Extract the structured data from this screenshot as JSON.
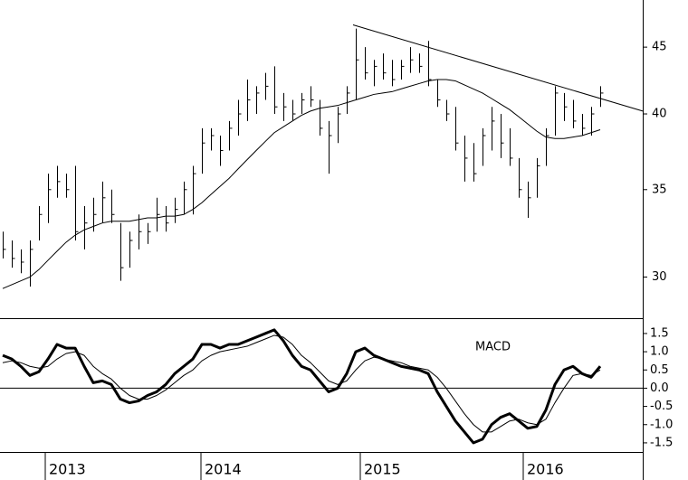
{
  "chart_data": [
    {
      "type": "ohlc",
      "color": "#000000",
      "log_scale": true,
      "xlim": [
        -0.3,
        70.7
      ],
      "ylim": [
        27.9,
        48.9
      ],
      "yticks": [
        30,
        35,
        40,
        45
      ],
      "high": [
        32.5,
        32,
        31.5,
        32,
        34,
        36,
        36.5,
        36,
        36.5,
        34,
        34.5,
        35.5,
        35,
        33,
        32.5,
        33.5,
        33,
        34.5,
        34,
        34.5,
        35.5,
        36.5,
        39,
        39,
        38.5,
        39.5,
        41,
        42.5,
        42,
        43,
        43.5,
        41.5,
        41,
        41.5,
        42,
        41,
        39.5,
        40.5,
        42,
        46.5,
        45,
        44,
        44.5,
        44,
        44,
        45,
        44.5,
        45.5,
        42.5,
        41,
        40.5,
        38.5,
        38,
        39,
        40.5,
        40,
        39,
        37,
        35.5,
        37,
        39,
        42,
        41.5,
        41,
        40,
        40.5,
        42
      ],
      "low": [
        31,
        30.5,
        30.2,
        29.5,
        32,
        33,
        34.5,
        34.5,
        32,
        31.5,
        32.5,
        33,
        33,
        29.8,
        30.5,
        31.5,
        31.8,
        32.5,
        32.5,
        33,
        33.5,
        33.5,
        36,
        37.5,
        36.5,
        37.5,
        38.5,
        39.5,
        40,
        41,
        40,
        39.5,
        39.5,
        40,
        40.5,
        38.5,
        36,
        38,
        40,
        41,
        42.5,
        42,
        42.5,
        42,
        42.5,
        43,
        43,
        42,
        40.5,
        39.5,
        37.5,
        35.5,
        35.5,
        36.5,
        37.5,
        37,
        36.5,
        34.5,
        33.3,
        34.5,
        36.5,
        38.5,
        39.5,
        39,
        38.5,
        38.5,
        40.5
      ],
      "close": [
        31.5,
        31,
        30.8,
        31.5,
        33.5,
        35,
        35.5,
        35,
        32.5,
        33,
        33.5,
        34.5,
        33.5,
        30.5,
        32,
        32.5,
        32.5,
        33.5,
        33,
        33.8,
        35,
        36,
        38,
        38.5,
        37.5,
        39,
        40,
        41,
        41.5,
        42,
        40.5,
        40.5,
        40,
        41,
        41,
        39,
        38.5,
        40,
        41.5,
        44,
        43,
        43.5,
        43,
        42.5,
        43.5,
        44,
        43.5,
        42.5,
        41,
        40,
        38,
        37,
        36,
        38.5,
        39.5,
        38,
        37,
        35,
        34.5,
        36.5,
        38.5,
        41.5,
        40.5,
        39.5,
        39,
        40,
        41.5
      ],
      "moving_average": [
        29.4,
        29.6,
        29.8,
        30,
        30.4,
        30.9,
        31.4,
        31.9,
        32.3,
        32.6,
        32.8,
        33,
        33.1,
        33.1,
        33.1,
        33.2,
        33.3,
        33.3,
        33.4,
        33.4,
        33.5,
        33.8,
        34.2,
        34.7,
        35.2,
        35.7,
        36.3,
        36.9,
        37.5,
        38.1,
        38.7,
        39.1,
        39.5,
        39.9,
        40.2,
        40.4,
        40.5,
        40.6,
        40.8,
        41,
        41.2,
        41.4,
        41.5,
        41.6,
        41.8,
        42,
        42.2,
        42.4,
        42.5,
        42.5,
        42.4,
        42.1,
        41.8,
        41.5,
        41.1,
        40.7,
        40.3,
        39.8,
        39.3,
        38.8,
        38.4,
        38.3,
        38.3,
        38.4,
        38.5,
        38.7,
        38.9
      ],
      "trendline": {
        "x": [
          38.7,
          70.7
        ],
        "values": [
          46.8,
          40.2
        ]
      }
    },
    {
      "type": "line",
      "title": "MACD",
      "xlim": [
        -0.3,
        70.7
      ],
      "xticks": [
        {
          "value": 4.7,
          "label": "2013"
        },
        {
          "value": 21.9,
          "label": "2014"
        },
        {
          "value": 39.5,
          "label": "2015"
        },
        {
          "value": 57.5,
          "label": "2016"
        }
      ],
      "ylim": [
        -1.75,
        1.92
      ],
      "yticks": [
        -1.5,
        {
          "value": -1,
          "label": "-1.0"
        },
        -0.5,
        {
          "value": 0,
          "label": "0.0"
        },
        0.5,
        {
          "value": 1,
          "label": "1.0"
        },
        1.5
      ],
      "series": [
        {
          "color": "#000000",
          "width": 3,
          "values": [
            0.9,
            0.8,
            0.6,
            0.35,
            0.45,
            0.8,
            1.2,
            1.1,
            1.1,
            0.6,
            0.15,
            0.2,
            0.1,
            -0.3,
            -0.4,
            -0.35,
            -0.2,
            -0.1,
            0.1,
            0.4,
            0.6,
            0.8,
            1.2,
            1.2,
            1.1,
            1.2,
            1.2,
            1.3,
            1.4,
            1.5,
            1.6,
            1.3,
            0.9,
            0.6,
            0.5,
            0.2,
            -0.1,
            0,
            0.4,
            1,
            1.1,
            0.9,
            0.8,
            0.7,
            0.6,
            0.55,
            0.5,
            0.4,
            -0.1,
            -0.5,
            -0.9,
            -1.2,
            -1.5,
            -1.4,
            -1,
            -0.8,
            -0.7,
            -0.9,
            -1.1,
            -1.05,
            -0.6,
            0.1,
            0.5,
            0.6,
            0.4,
            0.3,
            0.6
          ]
        },
        {
          "color": "#000000",
          "width": 1,
          "values": [
            0.7,
            0.75,
            0.7,
            0.6,
            0.55,
            0.6,
            0.8,
            0.95,
            1,
            0.9,
            0.6,
            0.4,
            0.25,
            0,
            -0.2,
            -0.3,
            -0.3,
            -0.2,
            -0.05,
            0.15,
            0.35,
            0.5,
            0.75,
            0.9,
            1,
            1.05,
            1.1,
            1.15,
            1.25,
            1.35,
            1.45,
            1.4,
            1.2,
            0.9,
            0.7,
            0.45,
            0.2,
            0.1,
            0.2,
            0.5,
            0.75,
            0.85,
            0.8,
            0.75,
            0.7,
            0.6,
            0.55,
            0.5,
            0.3,
            0,
            -0.35,
            -0.7,
            -1,
            -1.2,
            -1.2,
            -1.05,
            -0.9,
            -0.85,
            -0.95,
            -1,
            -0.85,
            -0.4,
            0,
            0.35,
            0.4,
            0.35,
            0.5
          ]
        }
      ]
    }
  ]
}
